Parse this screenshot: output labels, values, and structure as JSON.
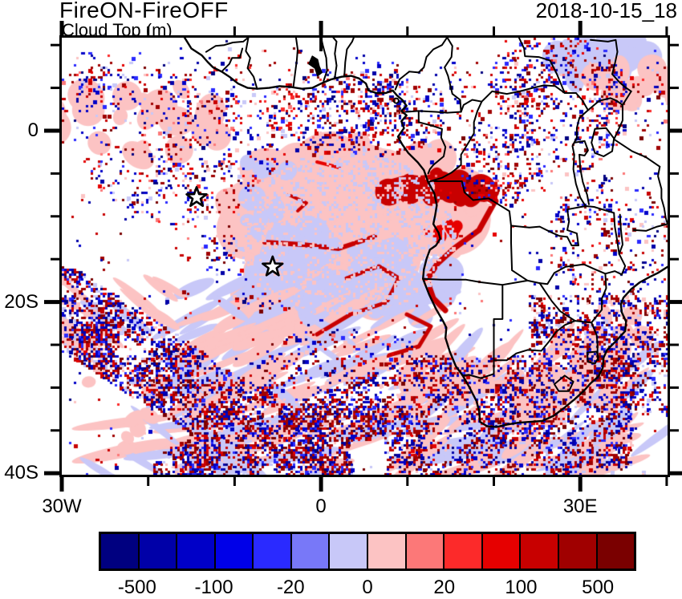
{
  "header": {
    "title": "FireON-FireOFF",
    "subtitle": "Cloud Top (m)",
    "timestamp": "2018-10-15_18"
  },
  "chart_data": {
    "type": "heatmap",
    "title": "FireON-FireOFF",
    "subtitle": "Cloud Top (m)",
    "timestamp": "2018-10-15_18",
    "units": "m",
    "description": "Difference field (FireON minus FireOFF simulation) of cloud top height over the South Atlantic and southern Africa, shown as a red/blue pixel map with coastlines and country borders.",
    "x_axis": {
      "tick_labels": [
        "30W",
        "0",
        "30E"
      ],
      "tick_lons": [
        -30,
        0,
        30
      ],
      "minor_tick_step_deg": 10,
      "range_deg": [
        -30,
        40.1
      ]
    },
    "y_axis": {
      "tick_labels": [
        "0",
        "20S",
        "40S"
      ],
      "tick_lats": [
        0,
        -20,
        -40
      ],
      "minor_tick_step_deg": 5,
      "range_deg": [
        10.9,
        -40.2
      ]
    },
    "colorbar": {
      "n_segments": 14,
      "colors": [
        "#000080",
        "#0000A8",
        "#0000C8",
        "#0000E8",
        "#2A2AFF",
        "#7878F8",
        "#C8C8F8",
        "#FCC3C3",
        "#FC7878",
        "#FC2A2A",
        "#E60000",
        "#C80000",
        "#A00000",
        "#7A0000"
      ],
      "tick_labels": [
        "-500",
        "-100",
        "-20",
        "0",
        "20",
        "100",
        "500"
      ]
    },
    "markers": [
      {
        "symbol": "star",
        "lon": -14.4,
        "lat": -7.8
      },
      {
        "symbol": "star",
        "lon": -5.6,
        "lat": -15.9
      }
    ],
    "map_colors": {
      "coastline": "#000000",
      "background": "#FFFFFF"
    }
  }
}
